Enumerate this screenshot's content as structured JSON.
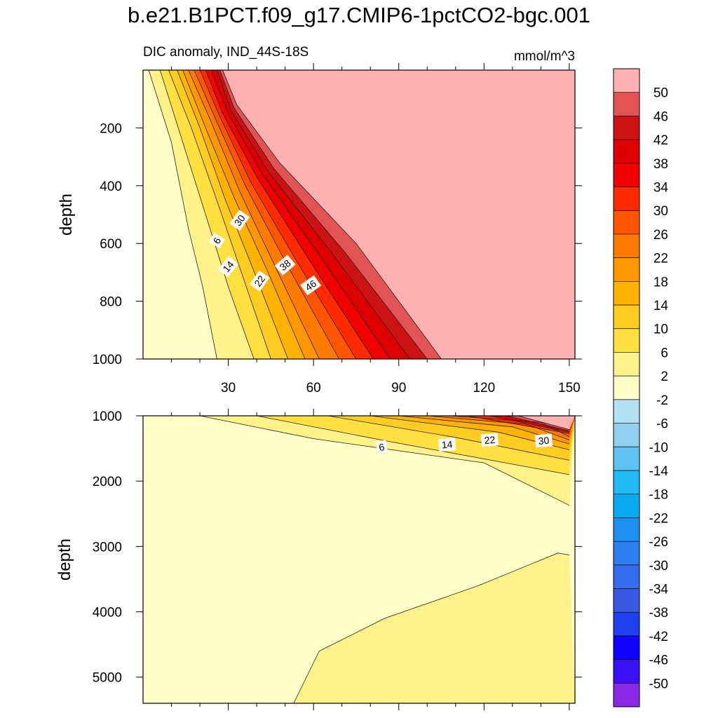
{
  "title": "b.e21.B1PCT.f09_g17.CMIP6-1pctCO2-bgc.001",
  "subtitle_left": "DIC anomaly, IND_44S-18S",
  "subtitle_right": "mmol/m^3",
  "colorbar": {
    "labels": [
      "50",
      "46",
      "42",
      "38",
      "34",
      "30",
      "26",
      "22",
      "18",
      "14",
      "10",
      "6",
      "2",
      "-2",
      "-6",
      "-10",
      "-14",
      "-18",
      "-22",
      "-26",
      "-30",
      "-34",
      "-38",
      "-42",
      "-46",
      "-50"
    ],
    "colors": [
      "#ffb0b0",
      "#e25454",
      "#cc1212",
      "#dd0000",
      "#f00000",
      "#ff2a00",
      "#ff5500",
      "#ff7a00",
      "#ff9700",
      "#ffb300",
      "#ffcc22",
      "#ffe040",
      "#fff28a",
      "#ffffc8",
      "#b4e0f4",
      "#90d0ee",
      "#5cc4f2",
      "#22baf4",
      "#0aaaf0",
      "#1e90f0",
      "#2b7fee",
      "#356cec",
      "#3a58e0",
      "#2040ee",
      "#1000ff",
      "#3a10f6",
      "#8a2ae6"
    ]
  },
  "chart_data": [
    {
      "type": "contour",
      "panel": "top",
      "title": "DIC anomaly, IND_44S-18S",
      "units": "mmol/m^3",
      "xlabel": "",
      "ylabel": "depth",
      "x_range": [
        0,
        152
      ],
      "y_range": [
        0,
        1000
      ],
      "y_reversed": true,
      "x_ticks": [
        "30",
        "60",
        "90",
        "120",
        "150"
      ],
      "y_ticks": [
        "200",
        "400",
        "600",
        "800",
        "1000"
      ],
      "contour_levels": [
        2,
        6,
        10,
        14,
        18,
        22,
        26,
        30,
        34,
        38,
        42,
        46,
        50
      ],
      "contour_labels": [
        "6",
        "14",
        "22",
        "30",
        "38",
        "46"
      ],
      "contour_lines": [
        {
          "level": 2,
          "points": [
            [
              2,
              0
            ],
            [
              10,
              250
            ],
            [
              16,
              550
            ],
            [
              21,
              750
            ],
            [
              26,
              1000
            ]
          ]
        },
        {
          "level": 6,
          "points": [
            [
              6,
              0
            ],
            [
              14,
              250
            ],
            [
              22,
              500
            ],
            [
              30,
              750
            ],
            [
              39,
              1000
            ]
          ]
        },
        {
          "level": 10,
          "points": [
            [
              9,
              0
            ],
            [
              17,
              200
            ],
            [
              27,
              480
            ],
            [
              36,
              740
            ],
            [
              45,
              1000
            ]
          ]
        },
        {
          "level": 14,
          "points": [
            [
              12,
              0
            ],
            [
              20,
              200
            ],
            [
              29,
              450
            ],
            [
              40,
              720
            ],
            [
              51,
              1000
            ]
          ]
        },
        {
          "level": 18,
          "points": [
            [
              14,
              0
            ],
            [
              22,
              200
            ],
            [
              32,
              440
            ],
            [
              44,
              700
            ],
            [
              57,
              1000
            ]
          ]
        },
        {
          "level": 22,
          "points": [
            [
              16,
              0
            ],
            [
              24,
              180
            ],
            [
              34,
              420
            ],
            [
              47,
              690
            ],
            [
              62,
              1000
            ]
          ]
        },
        {
          "level": 26,
          "points": [
            [
              18,
              0
            ],
            [
              26,
              180
            ],
            [
              36,
              400
            ],
            [
              51,
              680
            ],
            [
              69,
              1000
            ]
          ]
        },
        {
          "level": 30,
          "points": [
            [
              20,
              0
            ],
            [
              27,
              160
            ],
            [
              38,
              390
            ],
            [
              54,
              660
            ],
            [
              75,
              1000
            ]
          ]
        },
        {
          "level": 34,
          "points": [
            [
              22,
              0
            ],
            [
              28,
              150
            ],
            [
              40,
              370
            ],
            [
              58,
              650
            ],
            [
              81,
              1000
            ]
          ]
        },
        {
          "level": 38,
          "points": [
            [
              24,
              0
            ],
            [
              30,
              150
            ],
            [
              42,
              360
            ],
            [
              62,
              640
            ],
            [
              87,
              1000
            ]
          ]
        },
        {
          "level": 42,
          "points": [
            [
              26,
              0
            ],
            [
              31,
              140
            ],
            [
              44,
              350
            ],
            [
              67,
              640
            ],
            [
              94,
              1000
            ]
          ]
        },
        {
          "level": 46,
          "points": [
            [
              27,
              0
            ],
            [
              32,
              130
            ],
            [
              46,
              340
            ],
            [
              71,
              630
            ],
            [
              100,
              1000
            ]
          ]
        },
        {
          "level": 50,
          "points": [
            [
              28,
              0
            ],
            [
              33,
              120
            ],
            [
              48,
              320
            ],
            [
              75,
              600
            ],
            [
              105,
              1000
            ]
          ]
        }
      ]
    },
    {
      "type": "contour",
      "panel": "bottom",
      "xlabel": "",
      "ylabel": "depth",
      "x_range": [
        0,
        152
      ],
      "y_range": [
        1000,
        5400
      ],
      "y_reversed": true,
      "x_ticks": [
        "30",
        "60",
        "90",
        "120",
        "150"
      ],
      "y_ticks": [
        "1000",
        "2000",
        "3000",
        "4000",
        "5000"
      ],
      "contour_levels": [
        2,
        6,
        10,
        14,
        18,
        22,
        26,
        30,
        34,
        38,
        42,
        46,
        50
      ],
      "contour_labels": [
        "6",
        "14",
        "22",
        "30"
      ],
      "contour_lines": [
        {
          "level": 2,
          "points": [
            [
              20,
              1000
            ],
            [
              60,
              1350
            ],
            [
              120,
              1720
            ],
            [
              150,
              2370
            ]
          ]
        },
        {
          "level": 6,
          "points": [
            [
              40,
              1000
            ],
            [
              85,
              1380
            ],
            [
              150,
              1900
            ]
          ]
        },
        {
          "level": 10,
          "points": [
            [
              65,
              1000
            ],
            [
              110,
              1330
            ],
            [
              150,
              1680
            ]
          ]
        },
        {
          "level": 14,
          "points": [
            [
              80,
              1000
            ],
            [
              125,
              1250
            ],
            [
              150,
              1520
            ]
          ]
        },
        {
          "level": 18,
          "points": [
            [
              90,
              1000
            ],
            [
              130,
              1170
            ],
            [
              150,
              1430
            ]
          ]
        },
        {
          "level": 22,
          "points": [
            [
              100,
              1000
            ],
            [
              135,
              1130
            ],
            [
              150,
              1370
            ]
          ]
        },
        {
          "level": 26,
          "points": [
            [
              108,
              1000
            ],
            [
              140,
              1100
            ],
            [
              150,
              1320
            ]
          ]
        },
        {
          "level": 30,
          "points": [
            [
              114,
              1000
            ],
            [
              150,
              1270
            ]
          ]
        },
        {
          "level": 38,
          "points": [
            [
              122,
              1000
            ],
            [
              150,
              1250
            ]
          ]
        },
        {
          "level": 46,
          "points": [
            [
              128,
              1000
            ],
            [
              150,
              1230
            ]
          ]
        },
        {
          "level": 50,
          "points": [
            [
              132,
              1000
            ],
            [
              150,
              1210
            ]
          ]
        },
        {
          "level": 2,
          "points": [
            [
              53,
              5400
            ],
            [
              62,
              4600
            ],
            [
              85,
              4100
            ],
            [
              118,
              3600
            ],
            [
              146,
              3100
            ],
            [
              150,
              3130
            ]
          ]
        }
      ]
    }
  ]
}
